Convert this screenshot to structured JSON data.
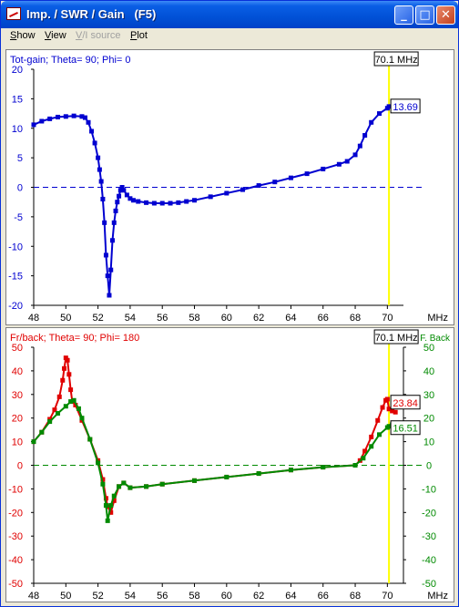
{
  "window": {
    "title": "Imp. / SWR / Gain   (F5)",
    "menu": [
      {
        "label": "Show",
        "underline": "S",
        "rest": "how",
        "disabled": false
      },
      {
        "label": "View",
        "underline": "V",
        "rest": "iew",
        "disabled": false
      },
      {
        "label": "V/I source",
        "underline": "V",
        "rest": "/I source",
        "disabled": true
      },
      {
        "label": "Plot",
        "underline": "P",
        "rest": "lot",
        "disabled": false
      }
    ],
    "buttons": {
      "minimize": "_",
      "maximize": "□",
      "close": "✕"
    }
  },
  "colors": {
    "blue": "#0000d0",
    "red": "#e00000",
    "green": "#008a00",
    "cursor": "#ffff00"
  },
  "chart_data": [
    {
      "type": "line",
      "title": "Tot-gain; Theta= 90; Phi= 0",
      "xlabel": "MHz",
      "xlim": [
        48,
        71
      ],
      "ylim": [
        -20,
        20
      ],
      "xticks": [
        "48",
        "50",
        "52",
        "54",
        "56",
        "58",
        "60",
        "62",
        "64",
        "66",
        "68",
        "70"
      ],
      "yticks": [
        "20",
        "15",
        "10",
        "5",
        "0",
        "-5",
        "-10",
        "-15",
        "-20"
      ],
      "cursor": {
        "x": 70.1,
        "label": "70.1 MHz"
      },
      "series": [
        {
          "color": "#0000d0",
          "end_label": "13.69",
          "x": [
            48.0,
            48.5,
            49.0,
            49.5,
            50.0,
            50.5,
            51.0,
            51.2,
            51.4,
            51.6,
            51.8,
            52.0,
            52.1,
            52.2,
            52.3,
            52.4,
            52.5,
            52.6,
            52.7,
            52.8,
            52.9,
            53.0,
            53.1,
            53.2,
            53.3,
            53.4,
            53.5,
            53.6,
            53.8,
            54.0,
            54.2,
            54.5,
            55.0,
            55.5,
            56.0,
            56.5,
            57.0,
            57.5,
            58.0,
            59.0,
            60.0,
            61.0,
            62.0,
            63.0,
            64.0,
            65.0,
            66.0,
            67.0,
            67.5,
            68.0,
            68.3,
            68.6,
            69.0,
            69.5,
            70.0,
            70.1,
            70.5
          ],
          "y": [
            10.6,
            11.2,
            11.6,
            11.9,
            12.0,
            12.1,
            12.0,
            11.8,
            11.0,
            9.5,
            7.5,
            5.0,
            3.0,
            1.0,
            -2.0,
            -6.0,
            -11.5,
            -15.0,
            -18.3,
            -14.0,
            -9.0,
            -6.0,
            -4.0,
            -2.5,
            -1.5,
            -0.5,
            0.0,
            -0.5,
            -1.3,
            -1.9,
            -2.2,
            -2.4,
            -2.6,
            -2.7,
            -2.7,
            -2.7,
            -2.6,
            -2.4,
            -2.2,
            -1.6,
            -1.0,
            -0.4,
            0.3,
            0.9,
            1.6,
            2.3,
            3.1,
            3.9,
            4.4,
            5.5,
            7.0,
            8.8,
            11.0,
            12.5,
            13.4,
            13.69,
            14.2
          ]
        }
      ]
    },
    {
      "type": "line",
      "title": "Fr/back; Theta= 90; Phi= 180",
      "xlabel": "MHz",
      "xlim": [
        48,
        71
      ],
      "ylim": [
        -50,
        50
      ],
      "xticks": [
        "48",
        "50",
        "52",
        "54",
        "56",
        "58",
        "60",
        "62",
        "64",
        "66",
        "68",
        "70"
      ],
      "yticks": [
        "50",
        "40",
        "30",
        "20",
        "10",
        "0",
        "-10",
        "-20",
        "-30",
        "-40",
        "-50"
      ],
      "right_yticks": [
        "50",
        "40",
        "30",
        "20",
        "10",
        "0",
        "-10",
        "-20",
        "-30",
        "-40",
        "-50"
      ],
      "right_label": "F. Back",
      "cursor": {
        "x": 70.1,
        "label": "70.1 MHz"
      },
      "series": [
        {
          "color": "#e00000",
          "end_label": "23.84",
          "x": [
            48.0,
            48.5,
            49.0,
            49.3,
            49.6,
            49.8,
            49.9,
            50.0,
            50.1,
            50.2,
            50.3,
            50.4,
            50.6,
            51.0,
            51.5,
            52.0,
            52.3,
            52.5,
            52.6,
            52.8,
            53.0,
            53.3,
            53.6,
            54.0,
            55.0,
            56.0,
            58.0,
            60.0,
            62.0,
            64.0,
            66.0,
            68.0,
            68.3,
            68.6,
            69.0,
            69.4,
            69.7,
            69.9,
            70.0,
            70.1,
            70.3,
            70.5
          ],
          "y": [
            10.0,
            14.0,
            19.5,
            23.5,
            29.0,
            36.0,
            41.0,
            45.5,
            44.5,
            38.5,
            32.0,
            27.0,
            25.5,
            19.0,
            11.0,
            2.0,
            -6.0,
            -14.0,
            -17.5,
            -20.0,
            -15.0,
            -9.0,
            -7.5,
            -9.5,
            -9.0,
            -8.0,
            -6.5,
            -5.0,
            -3.5,
            -2.0,
            -0.8,
            0.0,
            2.0,
            6.0,
            12.0,
            19.0,
            24.5,
            27.5,
            28.0,
            23.84,
            23.0,
            22.5
          ]
        },
        {
          "color": "#008a00",
          "end_label": "16.51",
          "x": [
            48.0,
            48.5,
            49.0,
            49.5,
            50.0,
            50.3,
            50.5,
            50.8,
            51.0,
            51.5,
            52.0,
            52.3,
            52.5,
            52.6,
            52.8,
            53.0,
            53.3,
            53.6,
            54.0,
            55.0,
            56.0,
            58.0,
            60.0,
            62.0,
            64.0,
            66.0,
            68.0,
            68.5,
            69.0,
            69.5,
            70.0,
            70.1,
            70.3,
            70.5
          ],
          "y": [
            10.0,
            14.0,
            18.5,
            22.0,
            25.0,
            27.0,
            27.5,
            24.0,
            20.0,
            11.0,
            1.0,
            -8.0,
            -17.0,
            -23.5,
            -17.0,
            -13.0,
            -9.0,
            -7.5,
            -9.5,
            -9.0,
            -8.0,
            -6.5,
            -5.0,
            -3.5,
            -2.0,
            -0.8,
            0.0,
            3.0,
            8.0,
            13.0,
            16.0,
            16.51,
            17.2,
            17.5
          ]
        }
      ]
    }
  ]
}
